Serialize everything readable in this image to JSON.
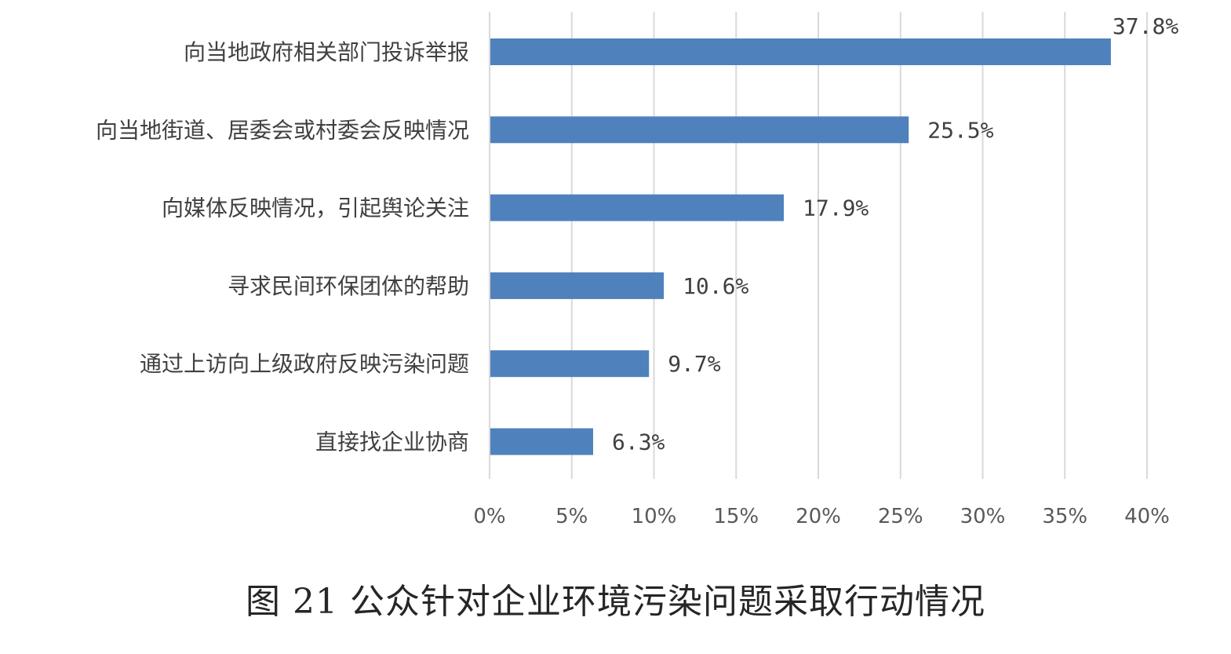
{
  "caption": "图 21 公众针对企业环境污染问题采取行动情况",
  "chart_data": {
    "type": "bar",
    "orientation": "horizontal",
    "categories": [
      "向当地政府相关部门投诉举报",
      "向当地街道、居委会或村委会反映情况",
      "向媒体反映情况，引起舆论关注",
      "寻求民间环保团体的帮助",
      "通过上访向上级政府反映污染问题",
      "直接找企业协商"
    ],
    "values": [
      37.8,
      25.5,
      17.9,
      10.6,
      9.7,
      6.3
    ],
    "data_labels": [
      "37.8%",
      "25.5%",
      "17.9%",
      "10.6%",
      "9.7%",
      "6.3%"
    ],
    "x_ticks": [
      0,
      5,
      10,
      15,
      20,
      25,
      30,
      35,
      40
    ],
    "x_tick_labels": [
      "0%",
      "5%",
      "10%",
      "15%",
      "20%",
      "25%",
      "30%",
      "35%",
      "40%"
    ],
    "xlim": [
      0,
      40
    ],
    "title": "",
    "xlabel": "",
    "ylabel": "",
    "grid": "vertical",
    "legend": "none",
    "bar_color": "#4f81bd",
    "grid_color": "#d9d9d9"
  }
}
